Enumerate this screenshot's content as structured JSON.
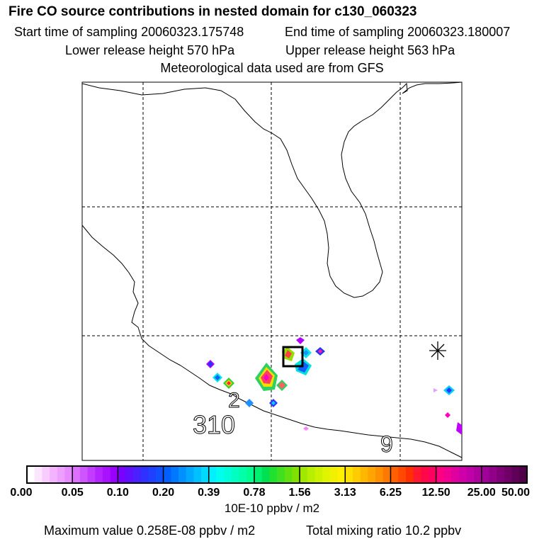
{
  "header": {
    "title": "Fire CO source contributions in nested domain for c130_060323",
    "start_time": "Start time of sampling 20060323.175748",
    "end_time": "End time of sampling 20060323.180007",
    "lower_release": "Lower release height  570 hPa",
    "upper_release": "Upper release height  563 hPa",
    "met_data": "Meteorological data used are from GFS"
  },
  "map": {
    "labels": [
      "2",
      "310",
      "9"
    ],
    "markers": [
      "release-box",
      "asterisk"
    ]
  },
  "colorbar": {
    "tick_labels": [
      "0.00",
      "0.05",
      "0.10",
      "0.20",
      "0.39",
      "0.78",
      "1.56",
      "3.13",
      "6.25",
      "12.50",
      "25.00",
      "50.00"
    ],
    "unit": "10E-10 ppbv / m2"
  },
  "footer": {
    "max_value": "Maximum value  0.258E-08 ppbv / m2",
    "total": "Total mixing ratio       10.2 ppbv"
  },
  "chart_data": {
    "type": "heatmap",
    "title": "Fire CO source contributions in nested domain for c130_060323",
    "colorbar_levels": [
      0.0,
      0.05,
      0.1,
      0.2,
      0.39,
      0.78,
      1.56,
      3.13,
      6.25,
      12.5,
      25.0,
      50.0
    ],
    "colorbar_unit": "10E-10 ppbv / m2",
    "max_value": "0.258E-08 ppbv / m2",
    "total_mixing_ratio_ppbv": 10.2,
    "colors": {
      "frame": "#000000",
      "grid": "#000000"
    }
  }
}
